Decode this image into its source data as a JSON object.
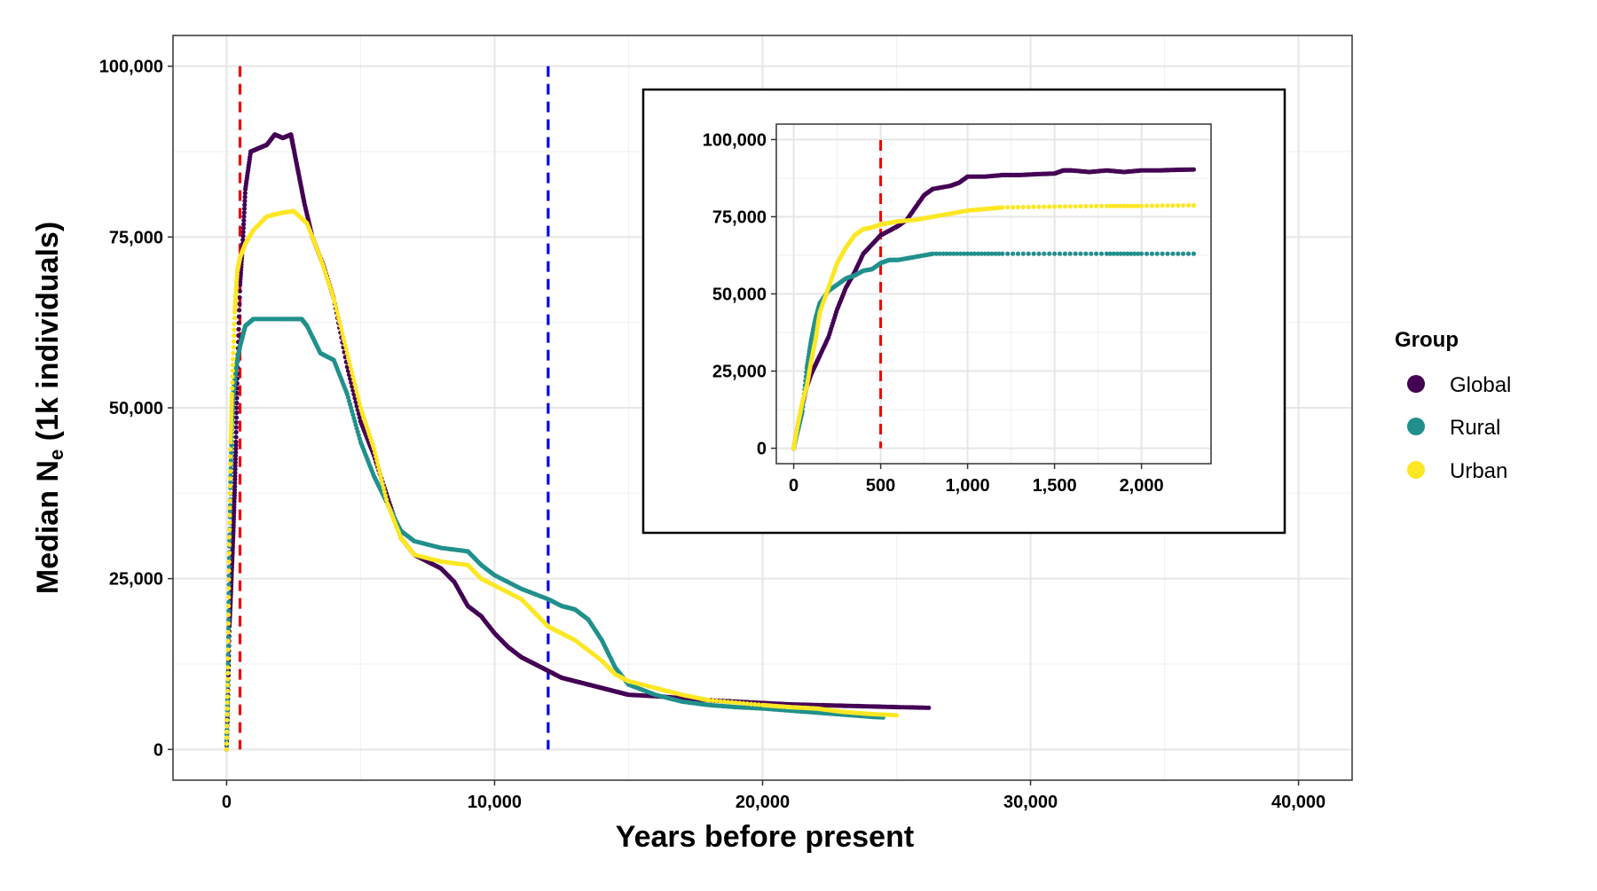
{
  "chart_data": {
    "type": "scatter",
    "xlabel": "Years before present",
    "ylabel": "Median N",
    "ylabel_sub": "e",
    "ylabel_suffix": " (1k individuals)",
    "xlim": [
      -2000,
      42000
    ],
    "ylim": [
      -4500,
      104500
    ],
    "xticks": [
      0,
      10000,
      20000,
      30000,
      40000
    ],
    "xtick_labels": [
      "0",
      "10,000",
      "20,000",
      "30,000",
      "40,000"
    ],
    "yticks": [
      0,
      25000,
      50000,
      75000,
      100000
    ],
    "ytick_labels": [
      "0",
      "25,000",
      "50,000",
      "75,000",
      "100,000"
    ],
    "grid": true,
    "legend": {
      "title": "Group",
      "position": "right",
      "items": [
        {
          "label": "Global",
          "color": "#440154"
        },
        {
          "label": "Rural",
          "color": "#21908C"
        },
        {
          "label": "Urban",
          "color": "#FDE725"
        }
      ]
    },
    "reference_lines": [
      {
        "x": 500,
        "color": "#ee0000",
        "style": "dashed"
      },
      {
        "x": 12000,
        "color": "#0000ee",
        "style": "dashed"
      }
    ],
    "series": [
      {
        "name": "Global",
        "color": "#440154",
        "points": [
          [
            0,
            0
          ],
          [
            50,
            8000
          ],
          [
            100,
            18000
          ],
          [
            150,
            22000
          ],
          [
            200,
            27000
          ],
          [
            250,
            32000
          ],
          [
            300,
            38000
          ],
          [
            350,
            45000
          ],
          [
            400,
            55000
          ],
          [
            500,
            68000
          ],
          [
            600,
            74000
          ],
          [
            700,
            82000
          ],
          [
            900,
            87500
          ],
          [
            1200,
            88000
          ],
          [
            1500,
            88500
          ],
          [
            1800,
            90000
          ],
          [
            2100,
            89500
          ],
          [
            2400,
            90000
          ],
          [
            2500,
            88000
          ],
          [
            2700,
            84000
          ],
          [
            2900,
            80000
          ],
          [
            3200,
            75000
          ],
          [
            3600,
            71000
          ],
          [
            4000,
            66000
          ],
          [
            4500,
            56000
          ],
          [
            5000,
            48000
          ],
          [
            5500,
            43000
          ],
          [
            6000,
            37000
          ],
          [
            6500,
            31000
          ],
          [
            7000,
            28500
          ],
          [
            7500,
            27500
          ],
          [
            8000,
            26500
          ],
          [
            8500,
            24500
          ],
          [
            9000,
            21000
          ],
          [
            9500,
            19500
          ],
          [
            10000,
            17000
          ],
          [
            10500,
            15000
          ],
          [
            11000,
            13500
          ],
          [
            11500,
            12500
          ],
          [
            12000,
            11500
          ],
          [
            12500,
            10500
          ],
          [
            13000,
            10000
          ],
          [
            13500,
            9500
          ],
          [
            14000,
            9000
          ],
          [
            14500,
            8500
          ],
          [
            15000,
            8000
          ],
          [
            16000,
            7800
          ],
          [
            17000,
            7500
          ],
          [
            18000,
            7200
          ],
          [
            19000,
            7000
          ],
          [
            20000,
            6800
          ],
          [
            21000,
            6600
          ],
          [
            22000,
            6500
          ],
          [
            23000,
            6400
          ],
          [
            24000,
            6300
          ],
          [
            25000,
            6200
          ],
          [
            26200,
            6100
          ]
        ]
      },
      {
        "name": "Rural",
        "color": "#21908C",
        "points": [
          [
            0,
            0
          ],
          [
            50,
            10000
          ],
          [
            100,
            28000
          ],
          [
            150,
            40000
          ],
          [
            200,
            48000
          ],
          [
            250,
            52000
          ],
          [
            300,
            54000
          ],
          [
            400,
            57000
          ],
          [
            500,
            59000
          ],
          [
            700,
            62000
          ],
          [
            1000,
            63000
          ],
          [
            2000,
            63000
          ],
          [
            2800,
            63000
          ],
          [
            3000,
            62000
          ],
          [
            3500,
            58000
          ],
          [
            4000,
            57000
          ],
          [
            4500,
            52000
          ],
          [
            5000,
            45000
          ],
          [
            5500,
            40000
          ],
          [
            6000,
            36000
          ],
          [
            6500,
            32000
          ],
          [
            7000,
            30500
          ],
          [
            8000,
            29500
          ],
          [
            9000,
            29000
          ],
          [
            9500,
            27000
          ],
          [
            10000,
            25500
          ],
          [
            11000,
            23500
          ],
          [
            12000,
            22000
          ],
          [
            12500,
            21000
          ],
          [
            13000,
            20500
          ],
          [
            13500,
            19000
          ],
          [
            14000,
            16000
          ],
          [
            14500,
            12000
          ],
          [
            15000,
            9500
          ],
          [
            16000,
            8000
          ],
          [
            17000,
            7000
          ],
          [
            18000,
            6500
          ],
          [
            19000,
            6200
          ],
          [
            20000,
            6000
          ],
          [
            21000,
            5700
          ],
          [
            22000,
            5400
          ],
          [
            23000,
            5100
          ],
          [
            24000,
            4800
          ],
          [
            24500,
            4700
          ]
        ]
      },
      {
        "name": "Urban",
        "color": "#FDE725",
        "points": [
          [
            0,
            0
          ],
          [
            50,
            12000
          ],
          [
            100,
            30000
          ],
          [
            150,
            45000
          ],
          [
            200,
            52000
          ],
          [
            300,
            64000
          ],
          [
            400,
            70000
          ],
          [
            500,
            72000
          ],
          [
            700,
            74000
          ],
          [
            1000,
            76000
          ],
          [
            1500,
            78000
          ],
          [
            2000,
            78500
          ],
          [
            2500,
            78800
          ],
          [
            3000,
            77000
          ],
          [
            3500,
            72000
          ],
          [
            4000,
            66000
          ],
          [
            4500,
            58000
          ],
          [
            5000,
            50000
          ],
          [
            5500,
            44000
          ],
          [
            6000,
            36000
          ],
          [
            6500,
            31000
          ],
          [
            7000,
            28500
          ],
          [
            8000,
            27500
          ],
          [
            9000,
            27000
          ],
          [
            9500,
            25000
          ],
          [
            10000,
            24000
          ],
          [
            11000,
            22000
          ],
          [
            11500,
            20000
          ],
          [
            12000,
            18000
          ],
          [
            12500,
            17000
          ],
          [
            13000,
            16000
          ],
          [
            14000,
            13000
          ],
          [
            14500,
            11000
          ],
          [
            15000,
            10000
          ],
          [
            16000,
            9000
          ],
          [
            17000,
            8000
          ],
          [
            18000,
            7200
          ],
          [
            20000,
            6500
          ],
          [
            21000,
            6200
          ],
          [
            22000,
            6000
          ],
          [
            23000,
            5500
          ],
          [
            24000,
            5200
          ],
          [
            25000,
            5000
          ]
        ]
      }
    ],
    "inset": {
      "type": "scatter",
      "xlim": [
        -100,
        2400
      ],
      "ylim": [
        -5000,
        105000
      ],
      "xticks": [
        0,
        500,
        1000,
        1500,
        2000
      ],
      "xtick_labels": [
        "0",
        "500",
        "1,000",
        "1,500",
        "2,000"
      ],
      "yticks": [
        0,
        25000,
        50000,
        75000,
        100000
      ],
      "ytick_labels": [
        "0",
        "25,000",
        "50,000",
        "75,000",
        "100,000"
      ],
      "reference_lines": [
        {
          "x": 500,
          "color": "#ee0000",
          "style": "dashed"
        }
      ],
      "series": [
        {
          "name": "Global",
          "color": "#440154",
          "points": [
            [
              0,
              0
            ],
            [
              25,
              8000
            ],
            [
              50,
              14000
            ],
            [
              75,
              20000
            ],
            [
              100,
              24000
            ],
            [
              125,
              27000
            ],
            [
              150,
              30000
            ],
            [
              200,
              36000
            ],
            [
              250,
              45000
            ],
            [
              300,
              52000
            ],
            [
              350,
              57000
            ],
            [
              400,
              63000
            ],
            [
              450,
              66000
            ],
            [
              500,
              69000
            ],
            [
              550,
              70500
            ],
            [
              600,
              72000
            ],
            [
              650,
              74000
            ],
            [
              700,
              78000
            ],
            [
              750,
              82000
            ],
            [
              800,
              84000
            ],
            [
              900,
              85000
            ],
            [
              950,
              86000
            ],
            [
              1000,
              88000
            ],
            [
              1100,
              88000
            ],
            [
              1200,
              88500
            ],
            [
              1300,
              88500
            ],
            [
              1400,
              88800
            ],
            [
              1500,
              89000
            ],
            [
              1550,
              90000
            ],
            [
              1600,
              90000
            ],
            [
              1700,
              89500
            ],
            [
              1800,
              90000
            ],
            [
              1900,
              89500
            ],
            [
              2000,
              90000
            ],
            [
              2100,
              90000
            ],
            [
              2200,
              90200
            ],
            [
              2300,
              90300
            ]
          ]
        },
        {
          "name": "Rural",
          "color": "#21908C",
          "points": [
            [
              0,
              0
            ],
            [
              25,
              6000
            ],
            [
              50,
              12000
            ],
            [
              75,
              26000
            ],
            [
              100,
              35000
            ],
            [
              125,
              42000
            ],
            [
              150,
              47000
            ],
            [
              200,
              51000
            ],
            [
              250,
              53000
            ],
            [
              300,
              55000
            ],
            [
              350,
              56000
            ],
            [
              400,
              57500
            ],
            [
              450,
              58000
            ],
            [
              500,
              60000
            ],
            [
              550,
              61000
            ],
            [
              600,
              61000
            ],
            [
              700,
              62000
            ],
            [
              800,
              63000
            ],
            [
              1000,
              63000
            ],
            [
              1200,
              63000
            ],
            [
              1500,
              63000
            ],
            [
              1800,
              63000
            ],
            [
              2000,
              63000
            ],
            [
              2300,
              63000
            ]
          ]
        },
        {
          "name": "Urban",
          "color": "#FDE725",
          "points": [
            [
              0,
              0
            ],
            [
              25,
              8000
            ],
            [
              50,
              15000
            ],
            [
              75,
              20000
            ],
            [
              100,
              28000
            ],
            [
              125,
              35000
            ],
            [
              150,
              44000
            ],
            [
              200,
              52000
            ],
            [
              250,
              60000
            ],
            [
              300,
              65000
            ],
            [
              350,
              69000
            ],
            [
              400,
              71000
            ],
            [
              450,
              71500
            ],
            [
              500,
              72500
            ],
            [
              550,
              73000
            ],
            [
              600,
              73500
            ],
            [
              700,
              74000
            ],
            [
              800,
              75000
            ],
            [
              900,
              76000
            ],
            [
              1000,
              77000
            ],
            [
              1100,
              77500
            ],
            [
              1200,
              78000
            ],
            [
              1500,
              78300
            ],
            [
              1800,
              78500
            ],
            [
              2000,
              78500
            ],
            [
              2300,
              78700
            ]
          ]
        }
      ]
    }
  }
}
